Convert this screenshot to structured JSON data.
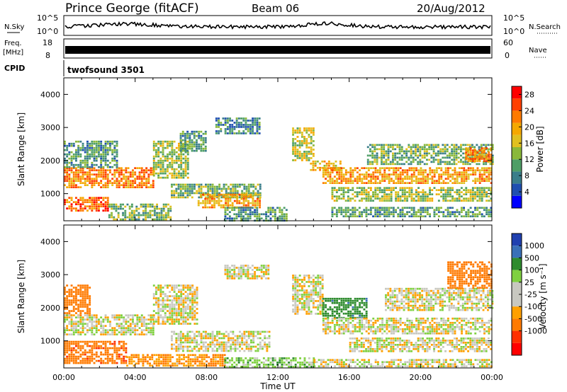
{
  "header": {
    "station": "Prince George (fitACF)",
    "beam": "Beam 06",
    "date": "20/Aug/2012"
  },
  "side_labels": {
    "nsky": "N.Sky",
    "freq": "Freq.",
    "freq_unit": "[MHz]",
    "cpid": "CPID",
    "nsearch": "N.Search",
    "nave": "Nave",
    "nsky_ticks": [
      "10^5",
      "10^0"
    ],
    "nsearch_ticks": [
      "10^5",
      "10^0"
    ],
    "freq_ticks": [
      "18",
      "8"
    ],
    "nave_ticks": [
      "60",
      "0"
    ]
  },
  "cpid_text": "twofsound 3501",
  "colors": {
    "power_scale": [
      "#0000ff",
      "#1f4fb0",
      "#3a7e8a",
      "#4e9e66",
      "#8ab83a",
      "#e0c020",
      "#f5a800",
      "#ff7a00",
      "#ff4000",
      "#ff0000"
    ],
    "velocity_scale": [
      "#2040b0",
      "#3a70b8",
      "#2e8b2e",
      "#7fd040",
      "#c8c8c0",
      "#c8c8c0",
      "#ffa000",
      "#ff7a00",
      "#ff3000",
      "#ff0000"
    ]
  },
  "chart_data": [
    {
      "type": "heatmap",
      "name": "power",
      "xlabel": "Time UT",
      "ylabel": "Slant Range [km]",
      "x_ticks": [
        "00:00",
        "04:00",
        "08:00",
        "12:00",
        "16:00",
        "20:00",
        "00:00"
      ],
      "y_ticks": [
        1000,
        2000,
        3000,
        4000
      ],
      "ylim": [
        180,
        4500
      ],
      "xlim_hours": [
        0,
        24
      ],
      "colorbar_label": "Power [dB]",
      "colorbar_ticks": [
        4,
        8,
        12,
        16,
        20,
        24,
        28
      ],
      "colorbar_range": [
        0,
        30
      ],
      "bands": [
        {
          "t0": 0.0,
          "t1": 5.0,
          "r0": 1200,
          "r1": 1800,
          "v": 22
        },
        {
          "t0": 0.0,
          "t1": 3.0,
          "r0": 1800,
          "r1": 2600,
          "v": 10
        },
        {
          "t0": 0.0,
          "t1": 2.5,
          "r0": 500,
          "r1": 900,
          "v": 24
        },
        {
          "t0": 2.5,
          "t1": 6.0,
          "r0": 250,
          "r1": 700,
          "v": 12
        },
        {
          "t0": 5.0,
          "t1": 7.0,
          "r0": 1500,
          "r1": 2600,
          "v": 14
        },
        {
          "t0": 6.5,
          "t1": 8.0,
          "r0": 2300,
          "r1": 2900,
          "v": 10
        },
        {
          "t0": 6.0,
          "t1": 11.0,
          "r0": 900,
          "r1": 1300,
          "v": 12
        },
        {
          "t0": 7.5,
          "t1": 11.0,
          "r0": 600,
          "r1": 1000,
          "v": 20
        },
        {
          "t0": 8.5,
          "t1": 11.0,
          "r0": 2800,
          "r1": 3300,
          "v": 8
        },
        {
          "t0": 9.0,
          "t1": 12.5,
          "r0": 200,
          "r1": 600,
          "v": 10
        },
        {
          "t0": 12.8,
          "t1": 14.0,
          "r0": 2000,
          "r1": 3000,
          "v": 16
        },
        {
          "t0": 13.8,
          "t1": 15.5,
          "r0": 1700,
          "r1": 2000,
          "v": 18
        },
        {
          "t0": 14.5,
          "t1": 24.0,
          "r0": 1300,
          "r1": 1800,
          "v": 20
        },
        {
          "t0": 15.0,
          "t1": 24.0,
          "r0": 800,
          "r1": 1200,
          "v": 14
        },
        {
          "t0": 17.0,
          "t1": 24.0,
          "r0": 1900,
          "r1": 2500,
          "v": 12
        },
        {
          "t0": 22.5,
          "t1": 24.0,
          "r0": 2000,
          "r1": 2400,
          "v": 22
        },
        {
          "t0": 15.0,
          "t1": 24.0,
          "r0": 300,
          "r1": 600,
          "v": 10
        }
      ]
    },
    {
      "type": "heatmap",
      "name": "velocity",
      "xlabel": "Time UT",
      "ylabel": "Slant Range [km]",
      "x_ticks": [
        "00:00",
        "04:00",
        "08:00",
        "12:00",
        "16:00",
        "20:00",
        "00:00"
      ],
      "y_ticks": [
        1000,
        2000,
        3000,
        4000
      ],
      "ylim": [
        180,
        4500
      ],
      "xlim_hours": [
        0,
        24
      ],
      "colorbar_label": "Velocity [m s⁻¹]",
      "colorbar_ticks": [
        "1000",
        "500",
        "100",
        "25",
        "-25",
        "-100",
        "-500",
        "-1000"
      ],
      "bands": [
        {
          "t0": 0.0,
          "t1": 3.5,
          "r0": 300,
          "r1": 1000,
          "v": -300
        },
        {
          "t0": 0.0,
          "t1": 1.5,
          "r0": 1800,
          "r1": 2700,
          "v": -200
        },
        {
          "t0": 0.0,
          "t1": 5.0,
          "r0": 1200,
          "r1": 1800,
          "v": 0
        },
        {
          "t0": 3.5,
          "t1": 9.0,
          "r0": 250,
          "r1": 600,
          "v": -80
        },
        {
          "t0": 5.0,
          "t1": 7.5,
          "r0": 1500,
          "r1": 2700,
          "v": 0
        },
        {
          "t0": 6.0,
          "t1": 11.5,
          "r0": 700,
          "r1": 1300,
          "v": 0
        },
        {
          "t0": 9.0,
          "t1": 14.0,
          "r0": 200,
          "r1": 500,
          "v": 60
        },
        {
          "t0": 9.0,
          "t1": 11.5,
          "r0": 2900,
          "r1": 3300,
          "v": 0
        },
        {
          "t0": 12.8,
          "t1": 14.5,
          "r0": 1800,
          "r1": 3000,
          "v": 0
        },
        {
          "t0": 14.5,
          "t1": 17.0,
          "r0": 1700,
          "r1": 2300,
          "v": 300
        },
        {
          "t0": 14.5,
          "t1": 24.0,
          "r0": 1200,
          "r1": 1700,
          "v": 0
        },
        {
          "t0": 16.0,
          "t1": 24.0,
          "r0": 700,
          "r1": 1100,
          "v": 0
        },
        {
          "t0": 18.0,
          "t1": 24.0,
          "r0": 1900,
          "r1": 2600,
          "v": 0
        },
        {
          "t0": 21.5,
          "t1": 24.0,
          "r0": 2600,
          "r1": 3400,
          "v": -150
        },
        {
          "t0": 14.0,
          "t1": 24.0,
          "r0": 200,
          "r1": 450,
          "v": 0
        }
      ]
    }
  ]
}
